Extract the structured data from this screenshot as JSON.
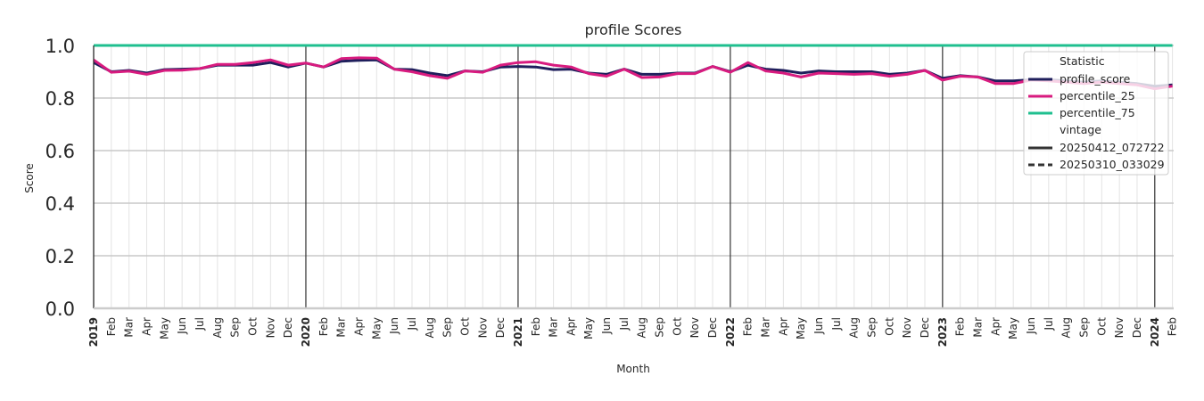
{
  "chart_data": {
    "type": "line",
    "title": "profile Scores",
    "xlabel": "Month",
    "ylabel": "Score",
    "ylim": [
      0.0,
      1.0
    ],
    "yticks": [
      "0.0",
      "0.2",
      "0.4",
      "0.6",
      "0.8",
      "1.0"
    ],
    "grid": true,
    "legend_position": "upper right",
    "x_start": "2019-01",
    "x_end": "2024-02",
    "x_tick_labels": [
      "2019",
      "Feb",
      "Mar",
      "Apr",
      "May",
      "Jun",
      "Jul",
      "Aug",
      "Sep",
      "Oct",
      "Nov",
      "Dec",
      "2020",
      "Feb",
      "Mar",
      "Apr",
      "May",
      "Jun",
      "Jul",
      "Aug",
      "Sep",
      "Oct",
      "Nov",
      "Dec",
      "2021",
      "Feb",
      "Mar",
      "Apr",
      "May",
      "Jun",
      "Jul",
      "Aug",
      "Sep",
      "Oct",
      "Nov",
      "Dec",
      "2022",
      "Feb",
      "Mar",
      "Apr",
      "May",
      "Jun",
      "Jul",
      "Aug",
      "Sep",
      "Oct",
      "Nov",
      "Dec",
      "2023",
      "Feb",
      "Mar",
      "Apr",
      "May",
      "Jun",
      "Jul",
      "Aug",
      "Sep",
      "Oct",
      "Nov",
      "Dec",
      "2024",
      "Feb"
    ],
    "series": [
      {
        "name": "profile_score",
        "color": "#1f1f5c",
        "vintage": "20250412_072722",
        "values": [
          0.935,
          0.9,
          0.905,
          0.895,
          0.908,
          0.91,
          0.912,
          0.925,
          0.925,
          0.925,
          0.935,
          0.918,
          0.933,
          0.918,
          0.94,
          0.943,
          0.945,
          0.91,
          0.908,
          0.895,
          0.885,
          0.903,
          0.9,
          0.918,
          0.92,
          0.918,
          0.908,
          0.91,
          0.895,
          0.89,
          0.91,
          0.89,
          0.89,
          0.895,
          0.895,
          0.92,
          0.9,
          0.925,
          0.91,
          0.905,
          0.895,
          0.903,
          0.9,
          0.9,
          0.9,
          0.89,
          0.895,
          0.905,
          0.875,
          0.885,
          0.88,
          0.865,
          0.865,
          0.87,
          0.87,
          0.865,
          0.86,
          0.865,
          0.86,
          0.855,
          0.845,
          0.85
        ]
      },
      {
        "name": "percentile_25",
        "color": "#d81b7f",
        "vintage": "20250412_072722",
        "values": [
          0.945,
          0.898,
          0.902,
          0.89,
          0.905,
          0.906,
          0.912,
          0.928,
          0.928,
          0.935,
          0.945,
          0.925,
          0.933,
          0.918,
          0.95,
          0.953,
          0.952,
          0.91,
          0.9,
          0.885,
          0.875,
          0.903,
          0.898,
          0.925,
          0.935,
          0.938,
          0.925,
          0.918,
          0.893,
          0.883,
          0.91,
          0.878,
          0.88,
          0.893,
          0.893,
          0.92,
          0.898,
          0.935,
          0.903,
          0.895,
          0.88,
          0.895,
          0.893,
          0.89,
          0.893,
          0.883,
          0.89,
          0.905,
          0.868,
          0.883,
          0.88,
          0.855,
          0.855,
          0.868,
          0.865,
          0.86,
          0.855,
          0.86,
          0.855,
          0.85,
          0.835,
          0.845
        ]
      },
      {
        "name": "percentile_75",
        "color": "#1fbf8f",
        "vintage": "20250412_072722",
        "values": [
          1.0,
          1.0,
          1.0,
          1.0,
          1.0,
          1.0,
          1.0,
          1.0,
          1.0,
          1.0,
          1.0,
          1.0,
          1.0,
          1.0,
          1.0,
          1.0,
          1.0,
          1.0,
          1.0,
          1.0,
          1.0,
          1.0,
          1.0,
          1.0,
          1.0,
          1.0,
          1.0,
          1.0,
          1.0,
          1.0,
          1.0,
          1.0,
          1.0,
          1.0,
          1.0,
          1.0,
          1.0,
          1.0,
          1.0,
          1.0,
          1.0,
          1.0,
          1.0,
          1.0,
          1.0,
          1.0,
          1.0,
          1.0,
          1.0,
          1.0,
          1.0,
          1.0,
          1.0,
          1.0,
          1.0,
          1.0,
          1.0,
          1.0,
          1.0,
          1.0,
          1.0,
          1.0
        ]
      }
    ]
  },
  "legend": {
    "statistic_title": "Statistic",
    "statistic_items": [
      {
        "label": "profile_score",
        "color": "#1f1f5c",
        "style": "solid"
      },
      {
        "label": "percentile_25",
        "color": "#d81b7f",
        "style": "solid"
      },
      {
        "label": "percentile_75",
        "color": "#1fbf8f",
        "style": "solid"
      }
    ],
    "vintage_title": "vintage",
    "vintage_items": [
      {
        "label": "20250412_072722",
        "color": "#333333",
        "style": "solid"
      },
      {
        "label": "20250310_033029",
        "color": "#333333",
        "style": "dashed"
      }
    ]
  }
}
